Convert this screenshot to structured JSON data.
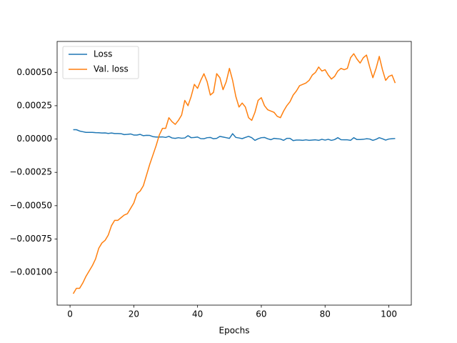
{
  "chart_data": {
    "type": "line",
    "xlabel": "Epochs",
    "x": [
      1,
      2,
      3,
      4,
      5,
      6,
      7,
      8,
      9,
      10,
      11,
      12,
      13,
      14,
      15,
      16,
      17,
      18,
      19,
      20,
      21,
      22,
      23,
      24,
      25,
      26,
      27,
      28,
      29,
      30,
      31,
      32,
      33,
      34,
      35,
      36,
      37,
      38,
      39,
      40,
      41,
      42,
      43,
      44,
      45,
      46,
      47,
      48,
      49,
      50,
      51,
      52,
      53,
      54,
      55,
      56,
      57,
      58,
      59,
      60,
      61,
      62,
      63,
      64,
      65,
      66,
      67,
      68,
      69,
      70,
      71,
      72,
      73,
      74,
      75,
      76,
      77,
      78,
      79,
      80,
      81,
      82,
      83,
      84,
      85,
      86,
      87,
      88,
      89,
      90,
      91,
      92,
      93,
      94,
      95,
      96,
      97,
      98,
      99,
      100,
      101,
      102
    ],
    "series": [
      {
        "name": "Loss",
        "color": "#1f77b4",
        "values": [
          7e-05,
          7e-05,
          6e-05,
          5.5e-05,
          5e-05,
          5e-05,
          5e-05,
          4.8e-05,
          4.7e-05,
          4.5e-05,
          4.6e-05,
          4.2e-05,
          4.5e-05,
          4.1e-05,
          4.1e-05,
          4e-05,
          3.3e-05,
          3.5e-05,
          3.8e-05,
          3e-05,
          3e-05,
          3.5e-05,
          2.5e-05,
          2.8e-05,
          2.7e-05,
          1.8e-05,
          1.5e-05,
          1.5e-05,
          1.6e-05,
          1.2e-05,
          2e-05,
          8e-06,
          5e-06,
          1e-05,
          6e-06,
          8e-06,
          2.5e-05,
          1e-05,
          1.2e-05,
          1.5e-05,
          3e-06,
          2e-06,
          1e-05,
          1.2e-05,
          2e-06,
          5e-06,
          2e-05,
          1.5e-05,
          1e-05,
          5e-06,
          4e-05,
          1.2e-05,
          8e-06,
          3e-06,
          1.2e-05,
          2e-05,
          1e-05,
          -1e-05,
          2e-06,
          1e-05,
          1.2e-05,
          2e-06,
          -5e-06,
          5e-06,
          2e-06,
          0,
          -1e-05,
          5e-06,
          5e-06,
          -1.2e-05,
          -8e-06,
          -8e-06,
          -1e-05,
          -6e-06,
          -1e-05,
          -8e-06,
          -6e-06,
          -1e-05,
          -2e-06,
          -8e-06,
          -2e-06,
          -1e-05,
          -4e-06,
          1e-05,
          -5e-06,
          -6e-06,
          -6e-06,
          -1e-05,
          1e-05,
          -4e-06,
          -4e-06,
          -2e-06,
          2e-06,
          0,
          -1e-05,
          -2e-06,
          1e-05,
          2e-06,
          -8e-06,
          0,
          2e-06,
          4e-06
        ]
      },
      {
        "name": "Val. loss",
        "color": "#ff7f0e",
        "values": [
          -0.00116,
          -0.00112,
          -0.00112,
          -0.00108,
          -0.00103,
          -0.00099,
          -0.00095,
          -0.0009,
          -0.00082,
          -0.00078,
          -0.00076,
          -0.00072,
          -0.00065,
          -0.00061,
          -0.00061,
          -0.00059,
          -0.00057,
          -0.00056,
          -0.00052,
          -0.00048,
          -0.00041,
          -0.00039,
          -0.00035,
          -0.00027,
          -0.00019,
          -0.00012,
          -5e-05,
          3e-05,
          8e-05,
          8e-05,
          0.00016,
          0.00013,
          0.00011,
          0.00014,
          0.00018,
          0.00029,
          0.00025,
          0.00032,
          0.00041,
          0.00038,
          0.00044,
          0.00049,
          0.00043,
          0.00033,
          0.00035,
          0.00049,
          0.00046,
          0.00037,
          0.00043,
          0.00053,
          0.00044,
          0.00032,
          0.00024,
          0.00027,
          0.00024,
          0.00016,
          0.00014,
          0.0002,
          0.00029,
          0.00031,
          0.00025,
          0.00022,
          0.00021,
          0.0002,
          0.00017,
          0.00016,
          0.00021,
          0.00025,
          0.00028,
          0.00033,
          0.00036,
          0.0004,
          0.00041,
          0.00042,
          0.00044,
          0.00048,
          0.0005,
          0.00054,
          0.00051,
          0.00052,
          0.00048,
          0.00045,
          0.00047,
          0.00051,
          0.00053,
          0.00052,
          0.00053,
          0.00061,
          0.00064,
          0.0006,
          0.00057,
          0.00061,
          0.00063,
          0.00054,
          0.00046,
          0.00053,
          0.00062,
          0.00052,
          0.00044,
          0.00047,
          0.00048,
          0.00042
        ]
      }
    ],
    "xlim": [
      -4.05,
      107.05
    ],
    "ylim": [
      -0.001246,
      0.000732
    ],
    "xticks": [
      0,
      20,
      40,
      60,
      80,
      100
    ],
    "yticks": [
      {
        "value": -0.001,
        "label": "−0.00100"
      },
      {
        "value": -0.00075,
        "label": "−0.00075"
      },
      {
        "value": -0.0005,
        "label": "−0.00050"
      },
      {
        "value": -0.00025,
        "label": "−0.00025"
      },
      {
        "value": 0,
        "label": "0.00000"
      },
      {
        "value": 0.00025,
        "label": "0.00025"
      },
      {
        "value": 0.0005,
        "label": "0.00050"
      }
    ],
    "legend": "upper left"
  }
}
